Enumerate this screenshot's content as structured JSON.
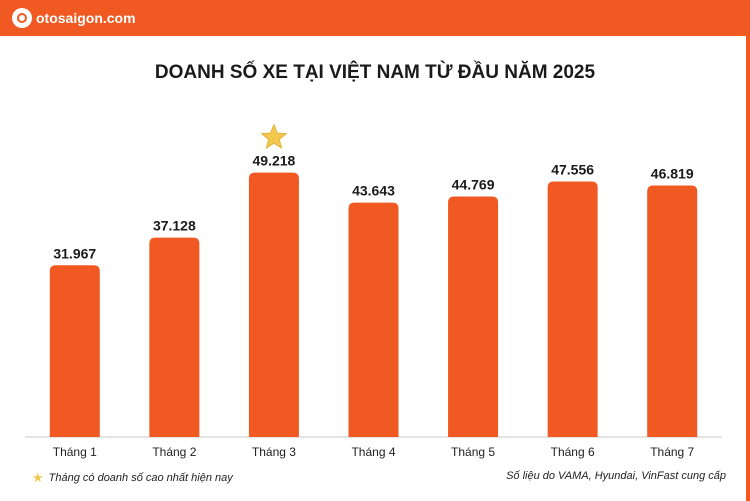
{
  "brand": {
    "logo_text": "otosaigon.com",
    "watermark_text": "otosaigon.com"
  },
  "colors": {
    "bar": "#f05a22",
    "accent": "#f05a22",
    "star": "#f2c94c"
  },
  "chart_data": {
    "type": "bar",
    "title": "DOANH SỐ XE TẠI VIỆT NAM TỪ ĐẦU NĂM 2025",
    "categories": [
      "Tháng 1",
      "Tháng 2",
      "Tháng 3",
      "Tháng 4",
      "Tháng 5",
      "Tháng 6",
      "Tháng 7"
    ],
    "values": [
      31967,
      37128,
      49218,
      43643,
      44769,
      47556,
      46819
    ],
    "value_labels": [
      "31.967",
      "37.128",
      "49.218",
      "43.643",
      "44.769",
      "47.556",
      "46.819"
    ],
    "highlight_index": 2,
    "ylim": [
      0,
      52500
    ],
    "grid": false,
    "xlabel": "",
    "ylabel": ""
  },
  "legend_note": "Tháng có doanh số cao nhất hiện nay",
  "source_note": "Số liệu do VAMA, Hyundai, VinFast cung cấp"
}
